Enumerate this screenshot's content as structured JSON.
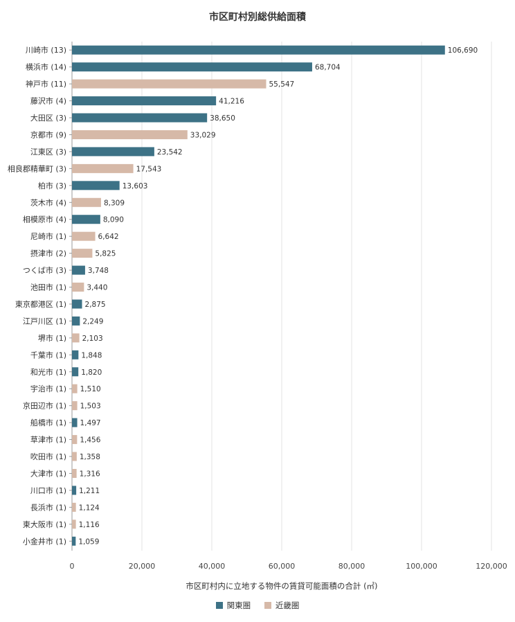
{
  "chart_data": {
    "type": "bar",
    "orientation": "horizontal",
    "title": "市区町村別総供給面積",
    "xlabel": "市区町村内に立地する物件の賃貸可能面積の合計 (㎡)",
    "ylabel": "",
    "xlim": [
      0,
      120000
    ],
    "xticks": [
      0,
      20000,
      40000,
      60000,
      80000,
      100000,
      120000
    ],
    "xtick_labels": [
      "0",
      "20,000",
      "40,000",
      "60,000",
      "80,000",
      "100,000",
      "120,000"
    ],
    "grid": "vertical",
    "legend_position": "bottom",
    "legend": [
      {
        "key": "kanto",
        "label": "関東圏",
        "color": "#3d7286"
      },
      {
        "key": "kinki",
        "label": "近畿圏",
        "color": "#d6b9a8"
      }
    ],
    "categories": [
      "川崎市 (13)",
      "横浜市 (14)",
      "神戸市 (11)",
      "藤沢市 (4)",
      "大田区 (3)",
      "京都市 (9)",
      "江東区 (3)",
      "相良郡精華町 (3)",
      "柏市 (3)",
      "茨木市 (4)",
      "相模原市 (4)",
      "尼崎市 (1)",
      "摂津市 (2)",
      "つくば市 (3)",
      "池田市 (1)",
      "東京都港区 (1)",
      "江戸川区 (1)",
      "堺市 (1)",
      "千葉市 (1)",
      "和光市 (1)",
      "宇治市 (1)",
      "京田辺市 (1)",
      "船橋市 (1)",
      "草津市 (1)",
      "吹田市 (1)",
      "大津市 (1)",
      "川口市 (1)",
      "長浜市 (1)",
      "東大阪市 (1)",
      "小金井市 (1)"
    ],
    "values": [
      106690,
      68704,
      55547,
      41216,
      38650,
      33029,
      23542,
      17543,
      13603,
      8309,
      8090,
      6642,
      5825,
      3748,
      3440,
      2875,
      2249,
      2103,
      1848,
      1820,
      1510,
      1503,
      1497,
      1456,
      1358,
      1316,
      1211,
      1124,
      1116,
      1059
    ],
    "value_labels": [
      "106,690",
      "68,704",
      "55,547",
      "41,216",
      "38,650",
      "33,029",
      "23,542",
      "17,543",
      "13,603",
      "8,309",
      "8,090",
      "6,642",
      "5,825",
      "3,748",
      "3,440",
      "2,875",
      "2,249",
      "2,103",
      "1,848",
      "1,820",
      "1,510",
      "1,503",
      "1,497",
      "1,456",
      "1,358",
      "1,316",
      "1,211",
      "1,124",
      "1,116",
      "1,059"
    ],
    "groups": [
      "kanto",
      "kanto",
      "kinki",
      "kanto",
      "kanto",
      "kinki",
      "kanto",
      "kinki",
      "kanto",
      "kinki",
      "kanto",
      "kinki",
      "kinki",
      "kanto",
      "kinki",
      "kanto",
      "kanto",
      "kinki",
      "kanto",
      "kanto",
      "kinki",
      "kinki",
      "kanto",
      "kinki",
      "kinki",
      "kinki",
      "kanto",
      "kinki",
      "kinki",
      "kanto"
    ]
  }
}
